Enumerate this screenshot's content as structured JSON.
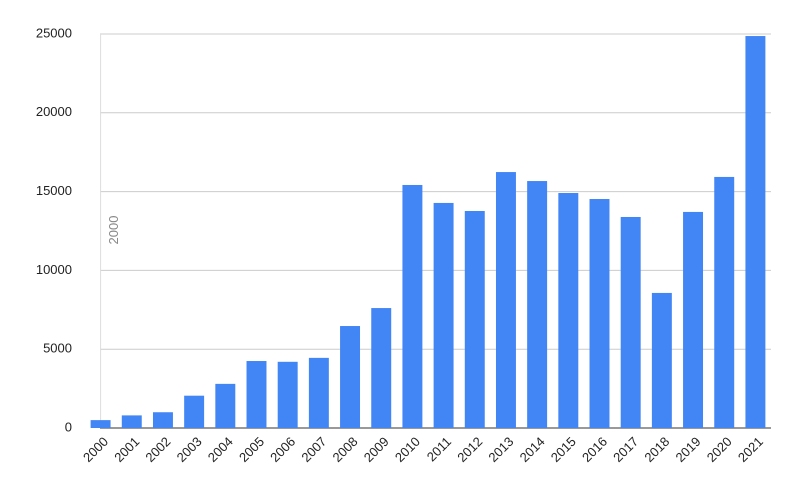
{
  "chart_data": {
    "type": "bar",
    "categories": [
      "2000",
      "2001",
      "2002",
      "2003",
      "2004",
      "2005",
      "2006",
      "2007",
      "2008",
      "2009",
      "2010",
      "2011",
      "2012",
      "2013",
      "2014",
      "2015",
      "2016",
      "2017",
      "2018",
      "2019",
      "2020",
      "2021"
    ],
    "values": [
      500,
      800,
      1000,
      2050,
      2800,
      4250,
      4200,
      4450,
      6470,
      7610,
      15420,
      14280,
      13770,
      16240,
      15670,
      14910,
      14530,
      13390,
      8570,
      13710,
      15930,
      24870
    ],
    "color": "#4285f4",
    "ylim": [
      0,
      25000
    ],
    "yticks": [
      0,
      5000,
      10000,
      15000,
      20000,
      25000
    ],
    "grid": true,
    "annotations": [
      {
        "x": "2000",
        "label": "2000"
      }
    ]
  }
}
